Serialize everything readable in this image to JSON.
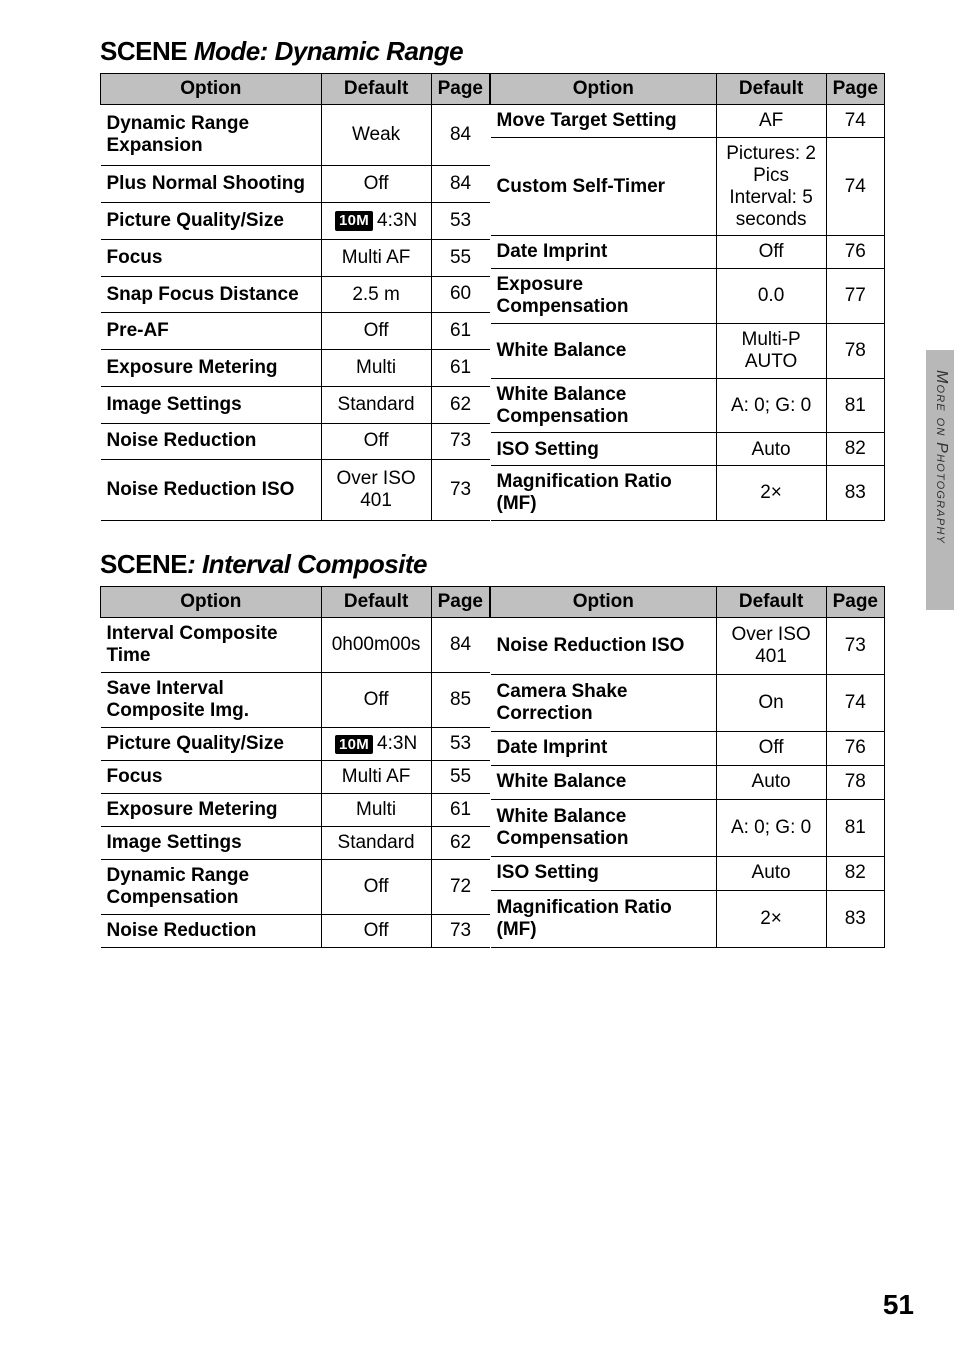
{
  "sidebar": {
    "label": "More on Photography"
  },
  "pageNumber": "51",
  "section1": {
    "prefix": "SCENE",
    "title": " Mode: Dynamic Range",
    "leftHeaders": {
      "opt": "Option",
      "def": "Default",
      "pg": "Page"
    },
    "rightHeaders": {
      "opt": "Option",
      "def": "Default",
      "pg": "Page"
    },
    "leftRows": [
      {
        "opt": "Dynamic Range Expansion",
        "def": "Weak",
        "pg": "84"
      },
      {
        "opt": "Plus Normal Shooting",
        "def": "Off",
        "pg": "84"
      },
      {
        "opt": "Picture Quality/Size",
        "def_badge": "10M",
        "def_tail": "4:3N",
        "pg": "53"
      },
      {
        "opt": "Focus",
        "def": "Multi AF",
        "pg": "55"
      },
      {
        "opt": "Snap Focus Distance",
        "def": "2.5 m",
        "pg": "60"
      },
      {
        "opt": "Pre-AF",
        "def": "Off",
        "pg": "61"
      },
      {
        "opt": "Exposure Metering",
        "def": "Multi",
        "pg": "61"
      },
      {
        "opt": "Image Settings",
        "def": "Standard",
        "pg": "62"
      },
      {
        "opt": "Noise Reduction",
        "def": "Off",
        "pg": "73"
      },
      {
        "opt": "Noise Reduction ISO",
        "def": "Over ISO 401",
        "pg": "73"
      }
    ],
    "rightRows": [
      {
        "opt": "Move Target Setting",
        "def": "AF",
        "pg": "74"
      },
      {
        "opt": "Custom Self-Timer",
        "def": "Pictures: 2 Pics\nInterval: 5 seconds",
        "pg": "74"
      },
      {
        "opt": "Date Imprint",
        "def": "Off",
        "pg": "76"
      },
      {
        "opt": "Exposure Compensation",
        "def": "0.0",
        "pg": "77"
      },
      {
        "opt": "White Balance",
        "def": "Multi-P AUTO",
        "pg": "78"
      },
      {
        "opt": "White Balance Compensation",
        "def": "A: 0; G: 0",
        "pg": "81"
      },
      {
        "opt": "ISO Setting",
        "def": "Auto",
        "pg": "82"
      },
      {
        "opt": "Magnification Ratio (MF)",
        "def": "2×",
        "pg": "83"
      }
    ]
  },
  "section2": {
    "prefix": "SCENE",
    "title": ": Interval Composite",
    "leftHeaders": {
      "opt": "Option",
      "def": "Default",
      "pg": "Page"
    },
    "rightHeaders": {
      "opt": "Option",
      "def": "Default",
      "pg": "Page"
    },
    "leftRows": [
      {
        "opt": "Interval Composite Time",
        "def": "0h00m00s",
        "pg": "84"
      },
      {
        "opt": "Save Interval Composite Img.",
        "def": "Off",
        "pg": "85"
      },
      {
        "opt": "Picture Quality/Size",
        "def_badge": "10M",
        "def_tail": "4:3N",
        "pg": "53"
      },
      {
        "opt": "Focus",
        "def": "Multi AF",
        "pg": "55"
      },
      {
        "opt": "Exposure Metering",
        "def": "Multi",
        "pg": "61"
      },
      {
        "opt": "Image Settings",
        "def": "Standard",
        "pg": "62"
      },
      {
        "opt": "Dynamic Range Compensation",
        "def": "Off",
        "pg": "72"
      },
      {
        "opt": "Noise Reduction",
        "def": "Off",
        "pg": "73"
      }
    ],
    "rightRows": [
      {
        "opt": "Noise Reduction ISO",
        "def": "Over ISO 401",
        "pg": "73"
      },
      {
        "opt": "Camera Shake Correction",
        "def": "On",
        "pg": "74"
      },
      {
        "opt": "Date Imprint",
        "def": "Off",
        "pg": "76"
      },
      {
        "opt": "White Balance",
        "def": "Auto",
        "pg": "78"
      },
      {
        "opt": "White Balance Compensation",
        "def": "A: 0; G: 0",
        "pg": "81"
      },
      {
        "opt": "ISO Setting",
        "def": "Auto",
        "pg": "82"
      },
      {
        "opt": "Magnification Ratio (MF)",
        "def": "2×",
        "pg": "83"
      }
    ]
  }
}
